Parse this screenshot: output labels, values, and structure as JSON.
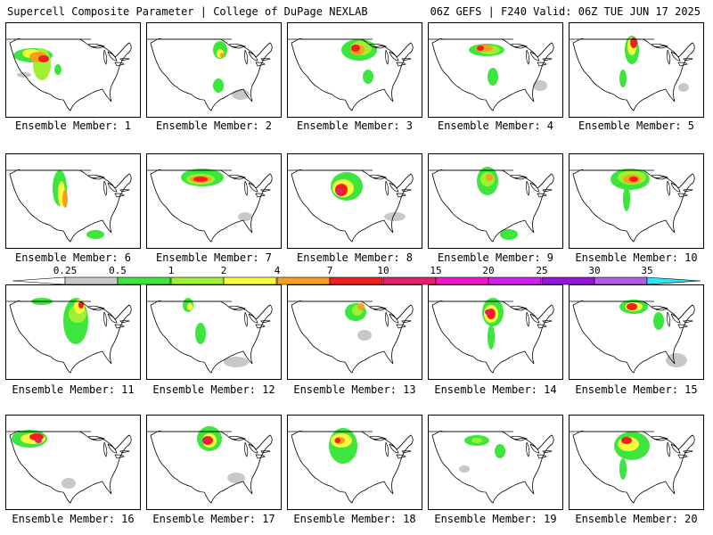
{
  "header": {
    "left": "Supercell Composite Parameter | College of DuPage NEXLAB",
    "right": "06Z GEFS | F240 Valid: 06Z TUE JUN 17 2025"
  },
  "member_label_prefix": "Ensemble Member:",
  "members": [
    1,
    2,
    3,
    4,
    5,
    6,
    7,
    8,
    9,
    10,
    11,
    12,
    13,
    14,
    15,
    16,
    17,
    18,
    19,
    20
  ],
  "colorbar": {
    "labels": [
      "0.25",
      "0.5",
      "1",
      "2",
      "4",
      "7",
      "10",
      "15",
      "20",
      "25",
      "30",
      "35"
    ],
    "colors": [
      "#c8c8c8",
      "#3ce63c",
      "#a0f032",
      "#fafa3c",
      "#f5a01e",
      "#f51e1e",
      "#e61e6e",
      "#f514c8",
      "#d21ef0",
      "#9614dc",
      "#b45ae6",
      "#28e6f5"
    ]
  },
  "colors": {
    "land_outline": "#000000",
    "low": "#c8c8c8",
    "green": "#3ce63c",
    "lime": "#a0f032",
    "yellow": "#fafa3c",
    "orange": "#f5a01e",
    "red": "#f51e1e",
    "magenta": "#e61e6e"
  }
}
